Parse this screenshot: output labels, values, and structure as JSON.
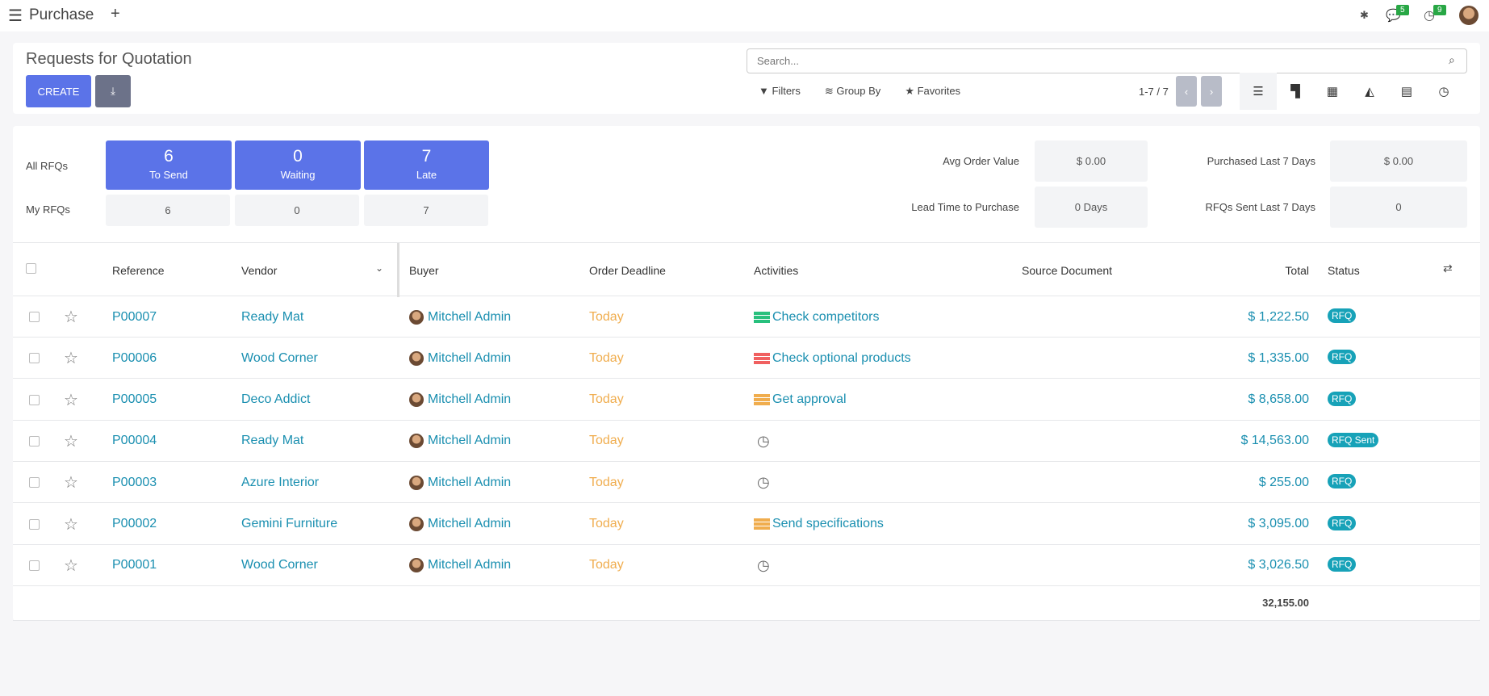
{
  "nav": {
    "app_title": "Purchase",
    "messages_count": "5",
    "activities_count": "9"
  },
  "control": {
    "title": "Requests for Quotation",
    "create_label": "CREATE",
    "search_placeholder": "Search...",
    "filters": "Filters",
    "group_by": "Group By",
    "favorites": "Favorites",
    "pager": "1-7 / 7"
  },
  "dashboard": {
    "all_label": "All RFQs",
    "my_label": "My RFQs",
    "tiles": [
      {
        "value": "6",
        "label": "To Send",
        "mine": "6"
      },
      {
        "value": "0",
        "label": "Waiting",
        "mine": "0"
      },
      {
        "value": "7",
        "label": "Late",
        "mine": "7"
      }
    ],
    "stats": [
      {
        "label": "Avg Order Value",
        "value": "$ 0.00"
      },
      {
        "label": "Lead Time to Purchase",
        "value": "0 Days"
      },
      {
        "label": "Purchased Last 7 Days",
        "value": "$ 0.00"
      },
      {
        "label": "RFQs Sent Last 7 Days",
        "value": "0"
      }
    ]
  },
  "table": {
    "headers": {
      "reference": "Reference",
      "vendor": "Vendor",
      "buyer": "Buyer",
      "deadline": "Order Deadline",
      "activities": "Activities",
      "source": "Source Document",
      "total": "Total",
      "status": "Status"
    },
    "rows": [
      {
        "ref": "P00007",
        "vendor": "Ready Mat",
        "buyer": "Mitchell Admin",
        "deadline": "Today",
        "activity": "Check competitors",
        "activity_color": "#28c07d",
        "total": "$ 1,222.50",
        "status": "RFQ"
      },
      {
        "ref": "P00006",
        "vendor": "Wood Corner",
        "buyer": "Mitchell Admin",
        "deadline": "Today",
        "activity": "Check optional products",
        "activity_color": "#f06060",
        "total": "$ 1,335.00",
        "status": "RFQ"
      },
      {
        "ref": "P00005",
        "vendor": "Deco Addict",
        "buyer": "Mitchell Admin",
        "deadline": "Today",
        "activity": "Get approval",
        "activity_color": "#f0ad4e",
        "total": "$ 8,658.00",
        "status": "RFQ"
      },
      {
        "ref": "P00004",
        "vendor": "Ready Mat",
        "buyer": "Mitchell Admin",
        "deadline": "Today",
        "activity": "",
        "activity_color": "",
        "total": "$ 14,563.00",
        "status": "RFQ Sent"
      },
      {
        "ref": "P00003",
        "vendor": "Azure Interior",
        "buyer": "Mitchell Admin",
        "deadline": "Today",
        "activity": "",
        "activity_color": "",
        "total": "$ 255.00",
        "status": "RFQ"
      },
      {
        "ref": "P00002",
        "vendor": "Gemini Furniture",
        "buyer": "Mitchell Admin",
        "deadline": "Today",
        "activity": "Send specifications",
        "activity_color": "#f0ad4e",
        "total": "$ 3,095.00",
        "status": "RFQ"
      },
      {
        "ref": "P00001",
        "vendor": "Wood Corner",
        "buyer": "Mitchell Admin",
        "deadline": "Today",
        "activity": "",
        "activity_color": "",
        "total": "$ 3,026.50",
        "status": "RFQ"
      }
    ],
    "grand_total": "32,155.00"
  }
}
